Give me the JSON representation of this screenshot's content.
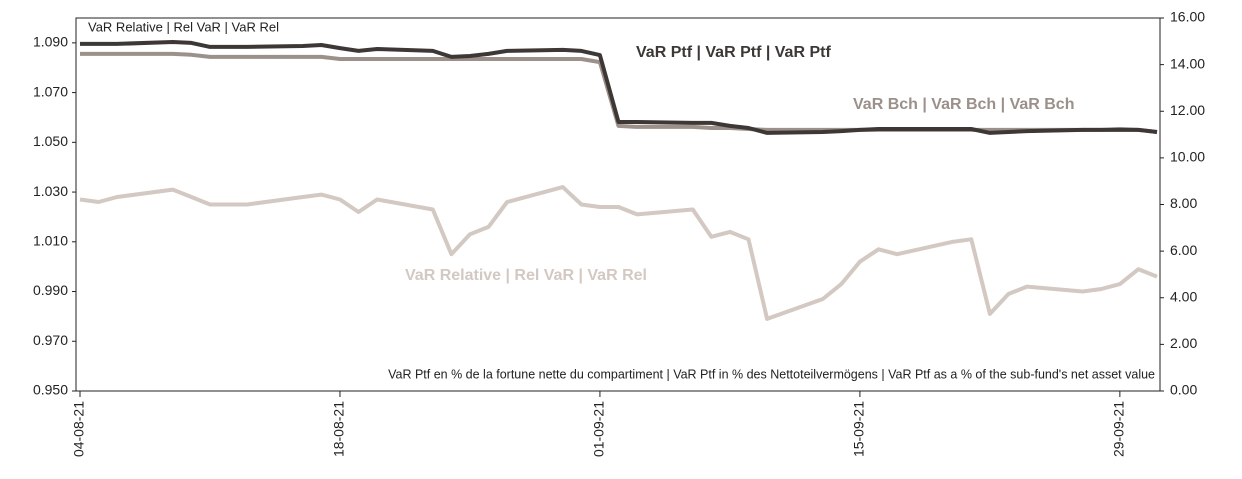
{
  "chart_data": {
    "type": "line",
    "ylabel": "VaR Relative | Rel VaR | VaR Rel",
    "annotation": "VaR Ptf en % de la fortune nette du compartiment | VaR Ptf in % des Nettoteilvermögens | VaR Ptf as a % of the sub-fund's net asset value",
    "x": [
      "04-08-21",
      "05-08-21",
      "06-08-21",
      "09-08-21",
      "10-08-21",
      "11-08-21",
      "12-08-21",
      "13-08-21",
      "16-08-21",
      "17-08-21",
      "18-08-21",
      "19-08-21",
      "20-08-21",
      "23-08-21",
      "24-08-21",
      "25-08-21",
      "26-08-21",
      "27-08-21",
      "30-08-21",
      "31-08-21",
      "01-09-21",
      "02-09-21",
      "03-09-21",
      "06-09-21",
      "07-09-21",
      "08-09-21",
      "09-09-21",
      "10-09-21",
      "13-09-21",
      "14-09-21",
      "15-09-21",
      "16-09-21",
      "17-09-21",
      "20-09-21",
      "21-09-21",
      "22-09-21",
      "23-09-21",
      "24-09-21",
      "27-09-21",
      "28-09-21",
      "29-09-21",
      "30-09-21",
      "01-10-21"
    ],
    "xlim": [
      "04-08-21",
      "01-10-21"
    ],
    "xticks": [
      "04-08-21",
      "18-08-21",
      "01-09-21",
      "15-09-21",
      "29-09-21"
    ],
    "ylim": [
      0.95,
      1.1
    ],
    "yticks": [
      {
        "value": 0.95,
        "label": "0.950"
      },
      {
        "value": 0.97,
        "label": "0.970"
      },
      {
        "value": 0.99,
        "label": "0.990"
      },
      {
        "value": 1.01,
        "label": "1.010"
      },
      {
        "value": 1.03,
        "label": "1.030"
      },
      {
        "value": 1.05,
        "label": "1.050"
      },
      {
        "value": 1.07,
        "label": "1.070"
      },
      {
        "value": 1.09,
        "label": "1.090"
      }
    ],
    "y2lim": [
      0,
      16
    ],
    "y2ticks": [
      {
        "value": 0,
        "label": "0.00"
      },
      {
        "value": 2,
        "label": "2.00"
      },
      {
        "value": 4,
        "label": "4.00"
      },
      {
        "value": 6,
        "label": "6.00"
      },
      {
        "value": 8,
        "label": "8.00"
      },
      {
        "value": 10,
        "label": "10.00"
      },
      {
        "value": 12,
        "label": "12.00"
      },
      {
        "value": 14,
        "label": "14.00"
      },
      {
        "value": 16,
        "label": "16.00"
      }
    ],
    "series": [
      {
        "name": "VaR Relative | Rel VaR | VaR Rel",
        "color": "#d3c8c2",
        "axis": "y",
        "values": [
          1.027,
          1.026,
          1.028,
          1.031,
          1.028,
          1.025,
          1.025,
          1.025,
          1.028,
          1.029,
          1.027,
          1.022,
          1.027,
          1.023,
          1.005,
          1.013,
          1.016,
          1.026,
          1.032,
          1.025,
          1.024,
          1.024,
          1.021,
          1.023,
          1.012,
          1.014,
          1.011,
          0.979,
          0.987,
          0.993,
          1.002,
          1.007,
          1.005,
          1.01,
          1.011,
          0.981,
          0.989,
          0.992,
          0.99,
          0.991,
          0.993,
          0.999,
          0.996
        ]
      },
      {
        "name": "VaR Bch | VaR Bch | VaR Bch",
        "color": "#9b908a",
        "axis": "y2",
        "values": [
          14.46,
          14.46,
          14.46,
          14.46,
          14.42,
          14.33,
          14.33,
          14.33,
          14.33,
          14.33,
          14.24,
          14.24,
          14.24,
          14.24,
          14.24,
          14.24,
          14.24,
          14.24,
          14.24,
          14.24,
          14.11,
          11.37,
          11.33,
          11.33,
          11.28,
          11.28,
          11.24,
          11.2,
          11.2,
          11.2,
          11.2,
          11.2,
          11.2,
          11.2,
          11.2,
          11.2,
          11.2,
          11.2,
          11.2,
          11.2,
          11.24,
          11.2,
          11.11
        ]
      },
      {
        "name": "VaR Ptf | VaR Ptf | VaR Ptf",
        "color": "#3d3836",
        "axis": "y2",
        "values": [
          14.89,
          14.89,
          14.89,
          14.97,
          14.93,
          14.76,
          14.76,
          14.76,
          14.8,
          14.84,
          14.71,
          14.59,
          14.67,
          14.59,
          14.33,
          14.37,
          14.46,
          14.59,
          14.63,
          14.59,
          14.41,
          11.54,
          11.54,
          11.5,
          11.5,
          11.37,
          11.28,
          11.07,
          11.11,
          11.15,
          11.2,
          11.24,
          11.24,
          11.24,
          11.24,
          11.07,
          11.11,
          11.15,
          11.2,
          11.2,
          11.2,
          11.2,
          11.11
        ]
      }
    ]
  }
}
